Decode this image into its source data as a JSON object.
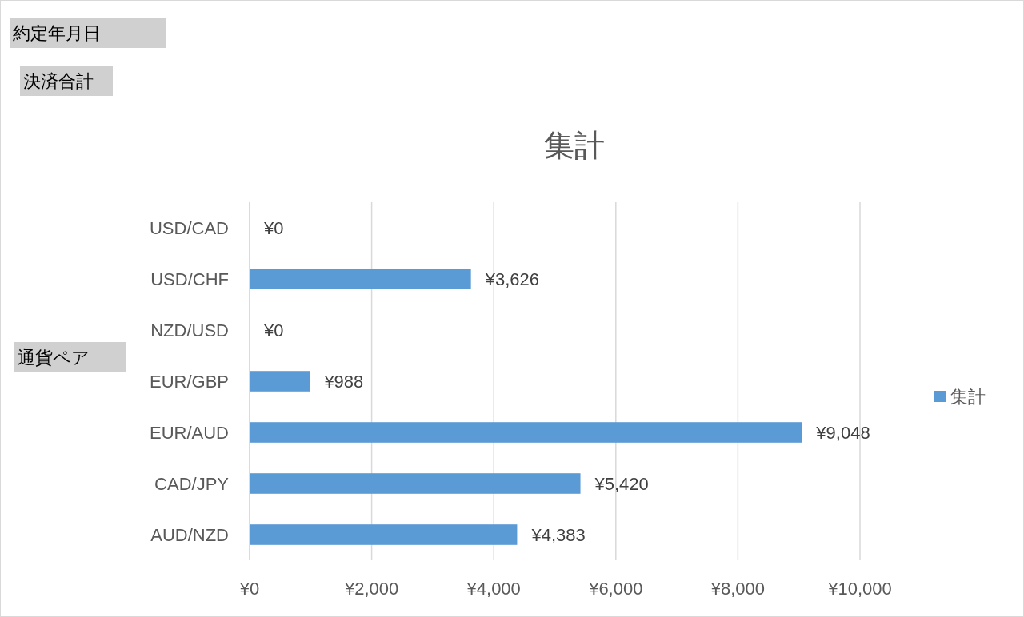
{
  "chart_data": {
    "type": "bar",
    "orientation": "horizontal",
    "title": "集計",
    "annotations": [
      "約定年月日",
      "決済合計",
      "通貨ペア"
    ],
    "categories": [
      "USD/CAD",
      "USD/CHF",
      "NZD/USD",
      "EUR/GBP",
      "EUR/AUD",
      "CAD/JPY",
      "AUD/NZD"
    ],
    "series": [
      {
        "name": "集計",
        "color": "#5b9bd5",
        "values": [
          0,
          3626,
          0,
          988,
          9048,
          5420,
          4383
        ],
        "value_labels": [
          "¥0",
          "¥3,626",
          "¥0",
          "¥988",
          "¥9,048",
          "¥5,420",
          "¥4,383"
        ]
      }
    ],
    "xlim": [
      0,
      10000
    ],
    "xticks": [
      {
        "value": 0,
        "label": "¥0"
      },
      {
        "value": 2000,
        "label": "¥2,000"
      },
      {
        "value": 4000,
        "label": "¥4,000"
      },
      {
        "value": 6000,
        "label": "¥6,000"
      },
      {
        "value": 8000,
        "label": "¥8,000"
      },
      {
        "value": 10000,
        "label": "¥10,000"
      }
    ],
    "grid": "x",
    "legend": "right"
  }
}
